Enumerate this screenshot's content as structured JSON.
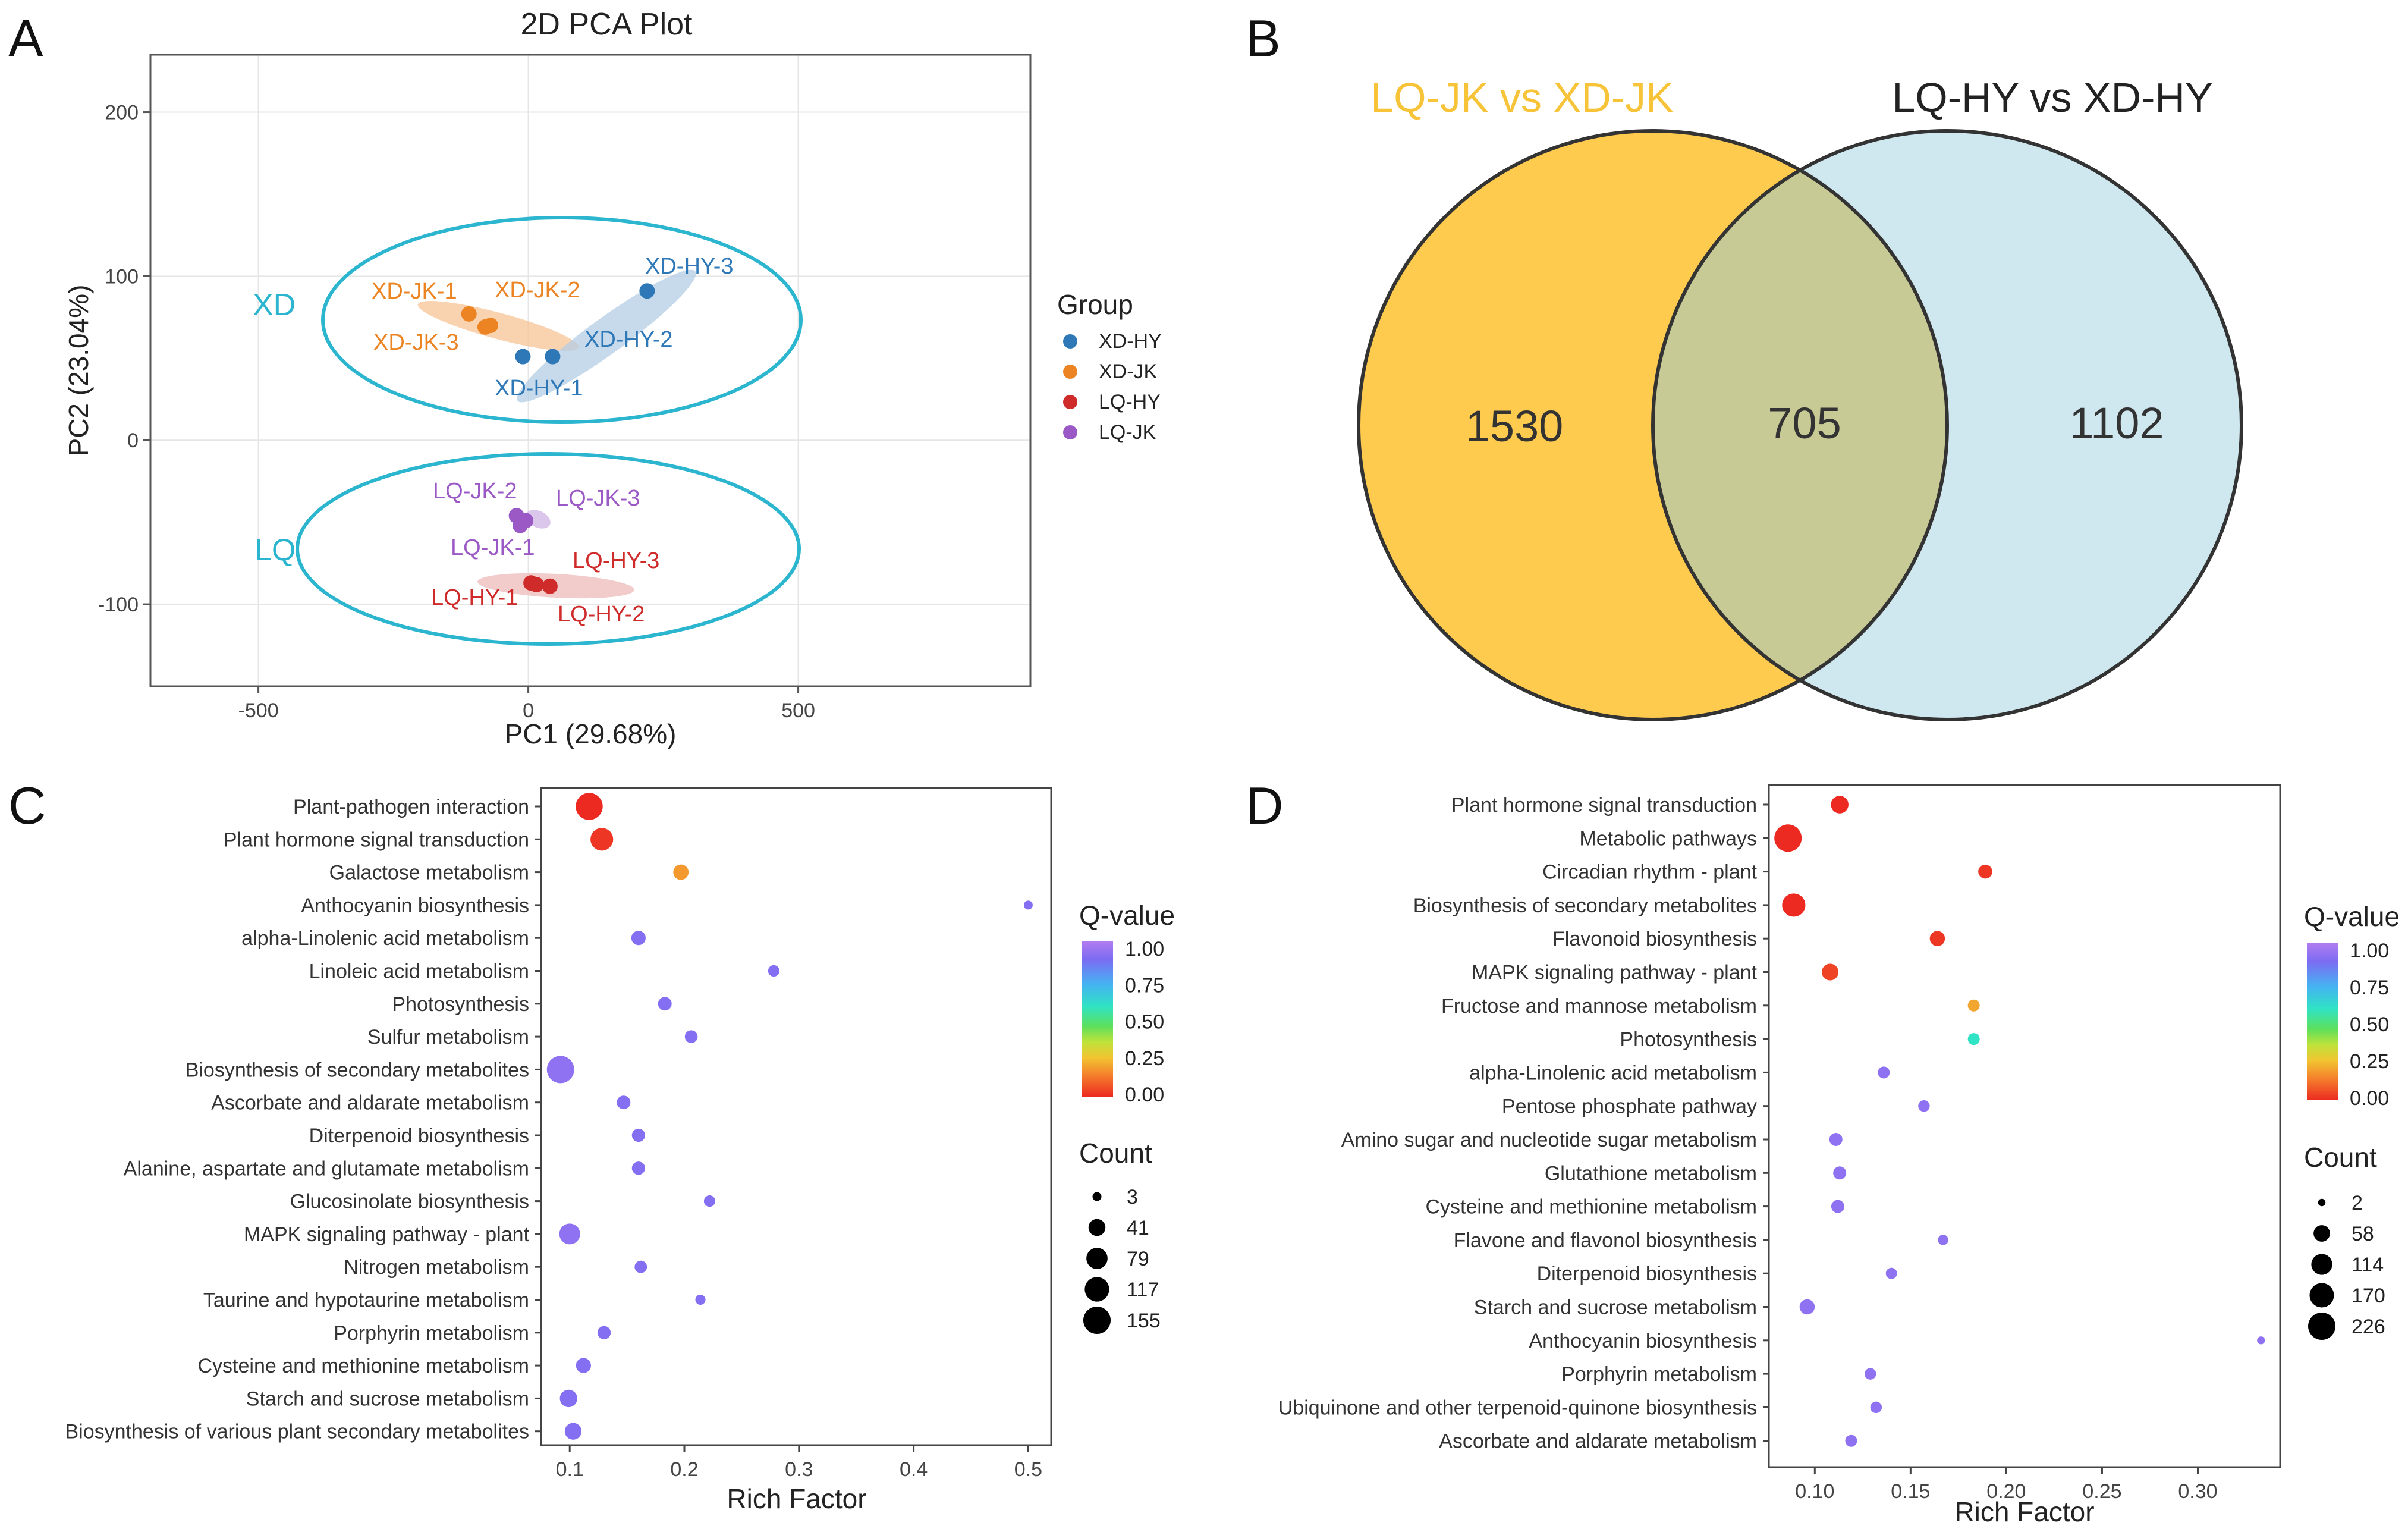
{
  "figure": {
    "panels": {
      "a": "A",
      "b": "B",
      "c": "C",
      "d": "D"
    }
  },
  "chart_data": [
    {
      "type": "scatter",
      "panel": "A",
      "title": "2D PCA Plot",
      "xlabel": "PC1 (29.68%)",
      "ylabel": "PC2 (23.04%)",
      "xlim": [
        -700,
        930
      ],
      "ylim": [
        -150,
        235
      ],
      "xticks": [
        -500,
        0,
        500
      ],
      "yticks": [
        -100,
        0,
        100,
        200
      ],
      "grid": true,
      "legend": {
        "title": "Group",
        "position": "right",
        "entries": [
          {
            "name": "XD-HY",
            "color": "#2e78b8"
          },
          {
            "name": "XD-JK",
            "color": "#ec8424"
          },
          {
            "name": "LQ-HY",
            "color": "#cf2b2b"
          },
          {
            "name": "LQ-JK",
            "color": "#9b59c6"
          }
        ]
      },
      "groups": [
        {
          "group": "XD-JK",
          "color": "#ec8424",
          "ellipse_color": "#f7c496",
          "points": [
            {
              "label": "XD-JK-1",
              "x": -110,
              "y": 77
            },
            {
              "label": "XD-JK-2",
              "x": -70,
              "y": 70
            },
            {
              "label": "XD-JK-3",
              "x": -80,
              "y": 69
            }
          ]
        },
        {
          "group": "XD-HY",
          "color": "#2e78b8",
          "ellipse_color": "#b4cde5",
          "points": [
            {
              "label": "XD-HY-1",
              "x": -10,
              "y": 51
            },
            {
              "label": "XD-HY-2",
              "x": 45,
              "y": 51
            },
            {
              "label": "XD-HY-3",
              "x": 220,
              "y": 91
            }
          ]
        },
        {
          "group": "LQ-JK",
          "color": "#9b59c6",
          "ellipse_color": "#d8c1ea",
          "points": [
            {
              "label": "LQ-JK-1",
              "x": -15,
              "y": -52
            },
            {
              "label": "LQ-JK-2",
              "x": -22,
              "y": -46
            },
            {
              "label": "LQ-JK-3",
              "x": -5,
              "y": -49
            }
          ]
        },
        {
          "group": "LQ-HY",
          "color": "#cf2b2b",
          "ellipse_color": "#f0c2c2",
          "points": [
            {
              "label": "LQ-HY-1",
              "x": 5,
              "y": -87
            },
            {
              "label": "LQ-HY-2",
              "x": 40,
              "y": -89
            },
            {
              "label": "LQ-HY-3",
              "x": 15,
              "y": -88
            }
          ]
        }
      ],
      "clusters": [
        {
          "label": "XD",
          "color": "#2bb5cf"
        },
        {
          "label": "LQ",
          "color": "#2bb5cf"
        }
      ]
    },
    {
      "type": "venn",
      "panel": "B",
      "sets": [
        {
          "name": "LQ-JK vs XD-JK",
          "only": 1530,
          "color": "#fecb4e",
          "title_color": "#f7c338"
        },
        {
          "name": "LQ-HY vs XD-HY",
          "only": 1102,
          "color": "#cfe7ee",
          "title_color": "#222222"
        }
      ],
      "intersection": 705,
      "intersection_color": "#c8ca95"
    },
    {
      "type": "scatter",
      "panel": "C",
      "xlabel": "Rich Factor",
      "xlim": [
        0.075,
        0.52
      ],
      "xticks": [
        0.1,
        0.2,
        0.3,
        0.4,
        0.5
      ],
      "xtick_labels": [
        "0.1",
        "0.2",
        "0.3",
        "0.4",
        "0.5"
      ],
      "color_legend": {
        "title": "Q-value",
        "ticks": [
          "1.00",
          "0.75",
          "0.50",
          "0.25",
          "0.00"
        ]
      },
      "size_legend": {
        "title": "Count",
        "values": [
          3,
          41,
          79,
          117,
          155
        ]
      },
      "size_max": 155,
      "points": [
        {
          "term": "Plant-pathogen interaction",
          "rich": 0.117,
          "count": 150,
          "q": 0.0
        },
        {
          "term": "Plant hormone signal transduction",
          "rich": 0.128,
          "count": 95,
          "q": 0.02
        },
        {
          "term": "Galactose metabolism",
          "rich": 0.197,
          "count": 30,
          "q": 0.18
        },
        {
          "term": "Anthocyanin biosynthesis",
          "rich": 0.5,
          "count": 3,
          "q": 0.9
        },
        {
          "term": "alpha-Linolenic acid metabolism",
          "rich": 0.16,
          "count": 24,
          "q": 0.9
        },
        {
          "term": "Linoleic acid metabolism",
          "rich": 0.278,
          "count": 10,
          "q": 0.9
        },
        {
          "term": "Photosynthesis",
          "rich": 0.183,
          "count": 20,
          "q": 0.9
        },
        {
          "term": "Sulfur metabolism",
          "rich": 0.206,
          "count": 16,
          "q": 0.9
        },
        {
          "term": "Biosynthesis of secondary metabolites",
          "rich": 0.092,
          "count": 155,
          "q": 0.92
        },
        {
          "term": "Ascorbate and aldarate metabolism",
          "rich": 0.147,
          "count": 20,
          "q": 0.9
        },
        {
          "term": "Diterpenoid biosynthesis",
          "rich": 0.16,
          "count": 18,
          "q": 0.9
        },
        {
          "term": "Alanine, aspartate and glutamate metabolism",
          "rich": 0.16,
          "count": 18,
          "q": 0.9
        },
        {
          "term": "Glucosinolate biosynthesis",
          "rich": 0.222,
          "count": 10,
          "q": 0.9
        },
        {
          "term": "MAPK signaling pathway - plant",
          "rich": 0.1,
          "count": 75,
          "q": 0.92
        },
        {
          "term": "Nitrogen metabolism",
          "rich": 0.162,
          "count": 14,
          "q": 0.9
        },
        {
          "term": "Taurine and hypotaurine metabolism",
          "rich": 0.214,
          "count": 6,
          "q": 0.9
        },
        {
          "term": "Porphyrin metabolism",
          "rich": 0.13,
          "count": 18,
          "q": 0.9
        },
        {
          "term": "Cysteine and methionine metabolism",
          "rich": 0.112,
          "count": 28,
          "q": 0.9
        },
        {
          "term": "Starch and sucrose metabolism",
          "rich": 0.099,
          "count": 45,
          "q": 0.9
        },
        {
          "term": "Biosynthesis of various plant secondary metabolites",
          "rich": 0.103,
          "count": 40,
          "q": 0.9
        }
      ]
    },
    {
      "type": "scatter",
      "panel": "D",
      "xlabel": "Rich Factor",
      "xlim": [
        0.076,
        0.343
      ],
      "xticks": [
        0.1,
        0.15,
        0.2,
        0.25,
        0.3
      ],
      "xtick_labels": [
        "0.10",
        "0.15",
        "0.20",
        "0.25",
        "0.30"
      ],
      "color_legend": {
        "title": "Q-value",
        "ticks": [
          "1.00",
          "0.75",
          "0.50",
          "0.25",
          "0.00"
        ]
      },
      "size_legend": {
        "title": "Count",
        "values": [
          2,
          58,
          114,
          170,
          226
        ]
      },
      "size_max": 226,
      "points": [
        {
          "term": "Plant hormone signal transduction",
          "rich": 0.113,
          "count": 70,
          "q": 0.0
        },
        {
          "term": "Metabolic pathways",
          "rich": 0.086,
          "count": 226,
          "q": 0.0
        },
        {
          "term": "Circadian rhythm - plant",
          "rich": 0.189,
          "count": 35,
          "q": 0.02
        },
        {
          "term": "Biosynthesis of secondary metabolites",
          "rich": 0.089,
          "count": 150,
          "q": 0.0
        },
        {
          "term": "Flavonoid biosynthesis",
          "rich": 0.164,
          "count": 45,
          "q": 0.02
        },
        {
          "term": "MAPK signaling pathway - plant",
          "rich": 0.108,
          "count": 60,
          "q": 0.04
        },
        {
          "term": "Fructose and mannose metabolism",
          "rich": 0.183,
          "count": 20,
          "q": 0.2
        },
        {
          "term": "Photosynthesis",
          "rich": 0.183,
          "count": 20,
          "q": 0.58
        },
        {
          "term": "alpha-Linolenic acid metabolism",
          "rich": 0.136,
          "count": 20,
          "q": 0.92
        },
        {
          "term": "Pentose phosphate pathway",
          "rich": 0.157,
          "count": 18,
          "q": 0.92
        },
        {
          "term": "Amino sugar and nucleotide sugar metabolism",
          "rich": 0.111,
          "count": 28,
          "q": 0.92
        },
        {
          "term": "Glutathione metabolism",
          "rich": 0.113,
          "count": 28,
          "q": 0.92
        },
        {
          "term": "Cysteine and methionine metabolism",
          "rich": 0.112,
          "count": 28,
          "q": 0.92
        },
        {
          "term": "Flavone and flavonol biosynthesis",
          "rich": 0.167,
          "count": 12,
          "q": 0.92
        },
        {
          "term": "Diterpenoid biosynthesis",
          "rich": 0.14,
          "count": 16,
          "q": 0.92
        },
        {
          "term": "Starch and sucrose metabolism",
          "rich": 0.096,
          "count": 45,
          "q": 0.92
        },
        {
          "term": "Anthocyanin biosynthesis",
          "rich": 0.333,
          "count": 3,
          "q": 0.92
        },
        {
          "term": "Porphyrin metabolism",
          "rich": 0.129,
          "count": 18,
          "q": 0.92
        },
        {
          "term": "Ubiquinone and other terpenoid-quinone biosynthesis",
          "rich": 0.132,
          "count": 18,
          "q": 0.92
        },
        {
          "term": "Ascorbate and aldarate metabolism",
          "rich": 0.119,
          "count": 20,
          "q": 0.92
        }
      ]
    }
  ]
}
